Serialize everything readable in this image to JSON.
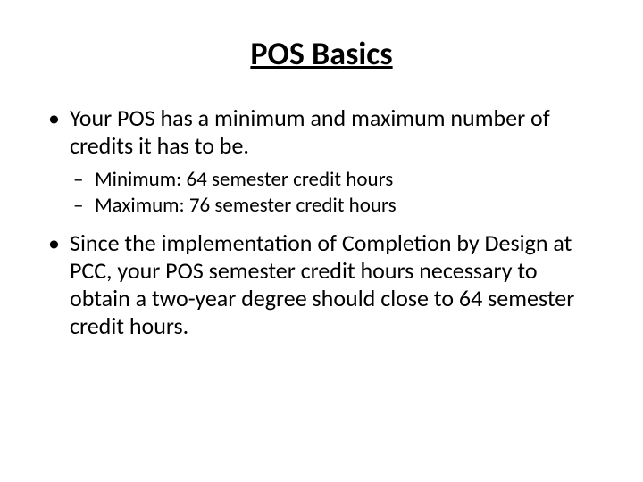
{
  "title": "POS Basics",
  "bullets": [
    {
      "text": "Your POS has a minimum and maximum number of credits it has to be.",
      "subitems": [
        "Minimum:  64 semester credit hours",
        "Maximum:  76 semester credit hours"
      ]
    },
    {
      "text": "Since the implementation of Completion by Design at PCC, your POS semester credit hours necessary to obtain a two-year degree should close to 64 semester credit hours.",
      "subitems": []
    }
  ],
  "colors": {
    "background": "#ffffff",
    "text": "#000000"
  },
  "typography": {
    "title_fontsize": 36,
    "bullet_fontsize": 26,
    "sub_fontsize": 23,
    "font_family": "Calibri"
  }
}
